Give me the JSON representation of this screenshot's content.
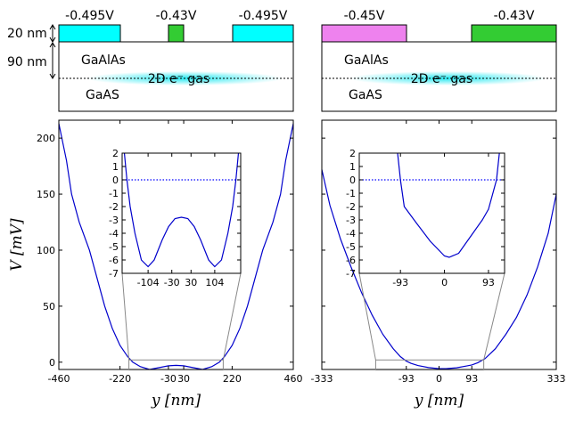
{
  "schematics": [
    {
      "gates": [
        {
          "label": "-0.495V",
          "color": "#00ffff"
        },
        {
          "label": "-0.43V",
          "color": "#33cc33"
        },
        {
          "label": "-0.495V",
          "color": "#00ffff"
        }
      ],
      "layers": [
        "20 nm",
        "90 nm"
      ],
      "top_material": "GaAlAs",
      "gas": "2D e⁻ gas",
      "bottom_material": "GaAS"
    },
    {
      "gates": [
        {
          "label": "-0.45V",
          "color": "#ee82ee"
        },
        {
          "label": "-0.43V",
          "color": "#33cc33"
        }
      ],
      "top_material": "GaAlAs",
      "gas": "2D e⁻ gas",
      "bottom_material": "GaAS"
    }
  ],
  "chart_data": [
    {
      "type": "line",
      "color": "#0000cc",
      "xlabel": "y [nm]",
      "ylabel": "V [mV]",
      "x": [
        -460,
        -430,
        -410,
        -380,
        -340,
        -310,
        -280,
        -250,
        -220,
        -190,
        -170,
        -140,
        -104,
        -70,
        -30,
        0,
        30,
        70,
        104,
        140,
        170,
        190,
        220,
        250,
        280,
        310,
        340,
        380,
        410,
        430,
        460
      ],
      "values": [
        213,
        180,
        150,
        125,
        100,
        75,
        50,
        30,
        15,
        5,
        0,
        -4,
        -6.5,
        -5,
        -3.2,
        -2.8,
        -3.2,
        -5,
        -6.5,
        -4,
        0,
        5,
        15,
        30,
        50,
        75,
        100,
        125,
        150,
        180,
        213
      ],
      "xlim": [
        -460,
        460
      ],
      "ylim": [
        -6.5,
        216
      ],
      "xticks": [
        -460,
        -220,
        -30,
        30,
        220,
        460
      ],
      "yticks": [
        0,
        50,
        100,
        150,
        200
      ],
      "show_ytick_labels": true
    },
    {
      "type": "line",
      "color": "#0000cc",
      "hline": 0,
      "hline_color": "#0000ff",
      "x": [
        -178,
        -170,
        -160,
        -145,
        -125,
        -104,
        -85,
        -60,
        -40,
        -20,
        0,
        20,
        40,
        60,
        85,
        104,
        125,
        145,
        160,
        170,
        178
      ],
      "values": [
        2,
        0,
        -2,
        -4,
        -6,
        -6.5,
        -6,
        -4.5,
        -3.5,
        -2.9,
        -2.8,
        -2.9,
        -3.5,
        -4.5,
        -6,
        -6.5,
        -6,
        -4,
        -2,
        0,
        2
      ],
      "xlim": [
        -185,
        185
      ],
      "ylim": [
        -7,
        2
      ],
      "xticks": [
        -104,
        -30,
        30,
        104
      ],
      "yticks": [
        2,
        1,
        0,
        -1,
        -2,
        -3,
        -4,
        -5,
        -6,
        -7
      ]
    },
    {
      "type": "line",
      "color": "#0000cc",
      "xlabel": "y [nm]",
      "x": [
        -333,
        -310,
        -280,
        -250,
        -220,
        -190,
        -160,
        -130,
        -110,
        -93,
        -80,
        -60,
        -30,
        0,
        20,
        50,
        80,
        93,
        110,
        130,
        160,
        190,
        220,
        250,
        280,
        310,
        333
      ],
      "values": [
        172,
        140,
        110,
        85,
        62,
        42,
        25,
        12,
        5,
        1,
        -1,
        -3,
        -4.8,
        -5.8,
        -5.8,
        -5,
        -3.3,
        -2.5,
        -0.5,
        3,
        12,
        25,
        40,
        60,
        85,
        115,
        150
      ],
      "xlim": [
        -333,
        333
      ],
      "ylim": [
        -6.5,
        216
      ],
      "xticks": [
        -333,
        -93,
        0,
        93,
        333
      ],
      "yticks": [
        0,
        50,
        100,
        150,
        200
      ],
      "show_ytick_labels": false
    },
    {
      "type": "line",
      "color": "#0000cc",
      "hline": 0,
      "hline_color": "#0000ff",
      "x": [
        -99,
        -93,
        -85,
        -60,
        -30,
        0,
        10,
        30,
        60,
        80,
        93,
        110,
        116
      ],
      "values": [
        2,
        0,
        -2,
        -3.2,
        -4.6,
        -5.7,
        -5.8,
        -5.5,
        -4,
        -3,
        -2.2,
        0,
        2
      ],
      "xlim": [
        -180,
        127
      ],
      "ylim": [
        -7,
        2
      ],
      "xticks": [
        -93,
        0,
        93
      ],
      "yticks": [
        2,
        1,
        0,
        -1,
        -2,
        -3,
        -4,
        -5,
        -6,
        -7
      ]
    }
  ]
}
